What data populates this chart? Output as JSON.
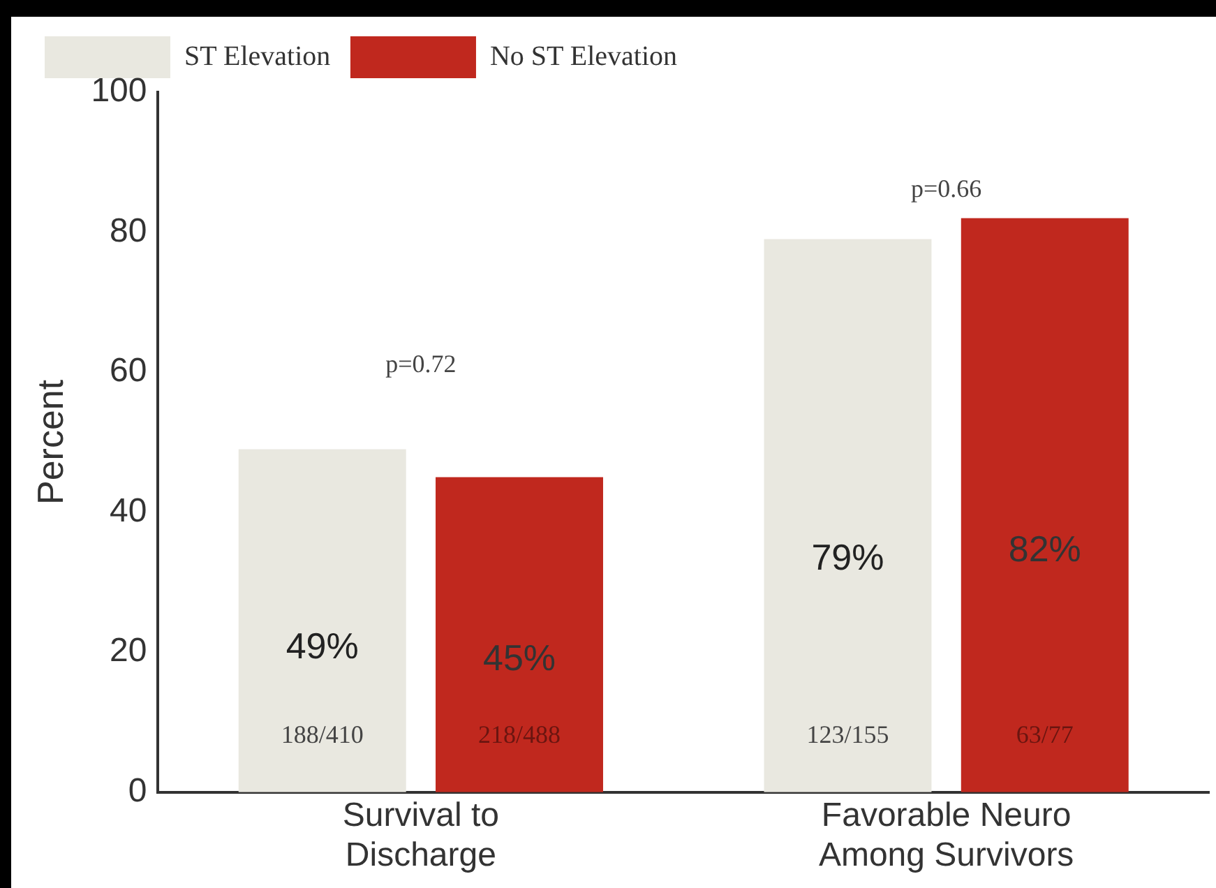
{
  "chart_data": {
    "type": "bar",
    "ylabel": "Percent",
    "categories": [
      "Survival to Discharge",
      "Favorable Neuro Among Survivors"
    ],
    "series": [
      {
        "name": "ST Elevation",
        "color": "#e9e8e0",
        "values": [
          49,
          79
        ],
        "value_labels": [
          "49%",
          "79%"
        ]
      },
      {
        "name": "No ST Elevation",
        "color": "#c0281e",
        "values": [
          45,
          82
        ],
        "value_labels": [
          "45%",
          "82%"
        ]
      }
    ],
    "ylim": [
      0,
      100
    ],
    "yticks": [
      0,
      20,
      40,
      60,
      80,
      100
    ],
    "grid": false,
    "legend": "top left",
    "annotations": [
      "p=0.72",
      "p=0.66",
      "188/410",
      "218/488",
      "123/155",
      "63/77"
    ]
  }
}
